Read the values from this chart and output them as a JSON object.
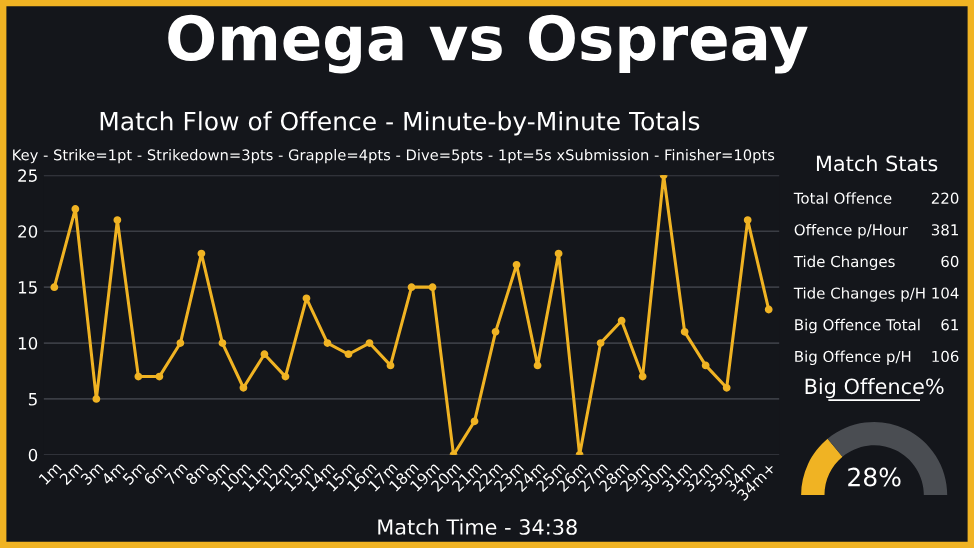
{
  "chart_data": [
    {
      "type": "line",
      "title": "Omega vs Ospreay",
      "subtitle": "Match Flow of Offence - Minute-by-Minute Totals",
      "annotations": [
        "Key - Strike=1pt - Strikedown=3pts - Grapple=4pts - Dive=5pts - 1pt=5s xSubmission - Finisher=10pts",
        "Match Time - 34:38"
      ],
      "categories": [
        "1m",
        "2m",
        "3m",
        "4m",
        "5m",
        "6m",
        "7m",
        "8m",
        "9m",
        "10m",
        "11m",
        "12m",
        "13m",
        "14m",
        "15m",
        "16m",
        "17m",
        "18m",
        "19m",
        "20m",
        "21m",
        "22m",
        "23m",
        "24m",
        "25m",
        "26m",
        "27m",
        "28m",
        "29m",
        "30m",
        "31m",
        "32m",
        "33m",
        "34m",
        "34m+"
      ],
      "series": [
        {
          "color": "#f0b323",
          "values": [
            15,
            22,
            5,
            21,
            7,
            7,
            10,
            18,
            10,
            6,
            9,
            7,
            14,
            10,
            9,
            10,
            8,
            15,
            15,
            0,
            3,
            11,
            17,
            8,
            18,
            0,
            10,
            12,
            7,
            25,
            11,
            8,
            6,
            21,
            13
          ]
        }
      ],
      "ylim": [
        0,
        25
      ],
      "yticks": [
        0,
        5,
        10,
        15,
        20,
        25
      ],
      "grid": "y",
      "marker": "circle",
      "line_style": "solid",
      "legend": false
    },
    {
      "type": "other",
      "title": "Match Stats",
      "annotations": [
        "Total Offence",
        "220",
        "Offence p/Hour",
        "381",
        "Tide Changes",
        "60",
        "Tide Changes p/H",
        "104",
        "Big Offence Total",
        "61",
        "Big Offence p/H",
        "106"
      ]
    },
    {
      "type": "donut",
      "title": "Big Offence%",
      "categories": [
        null,
        null
      ],
      "values": [
        28,
        72
      ],
      "colors": [
        "#f0b323",
        "#4a4d52"
      ],
      "annotations": [
        "28%"
      ]
    }
  ]
}
